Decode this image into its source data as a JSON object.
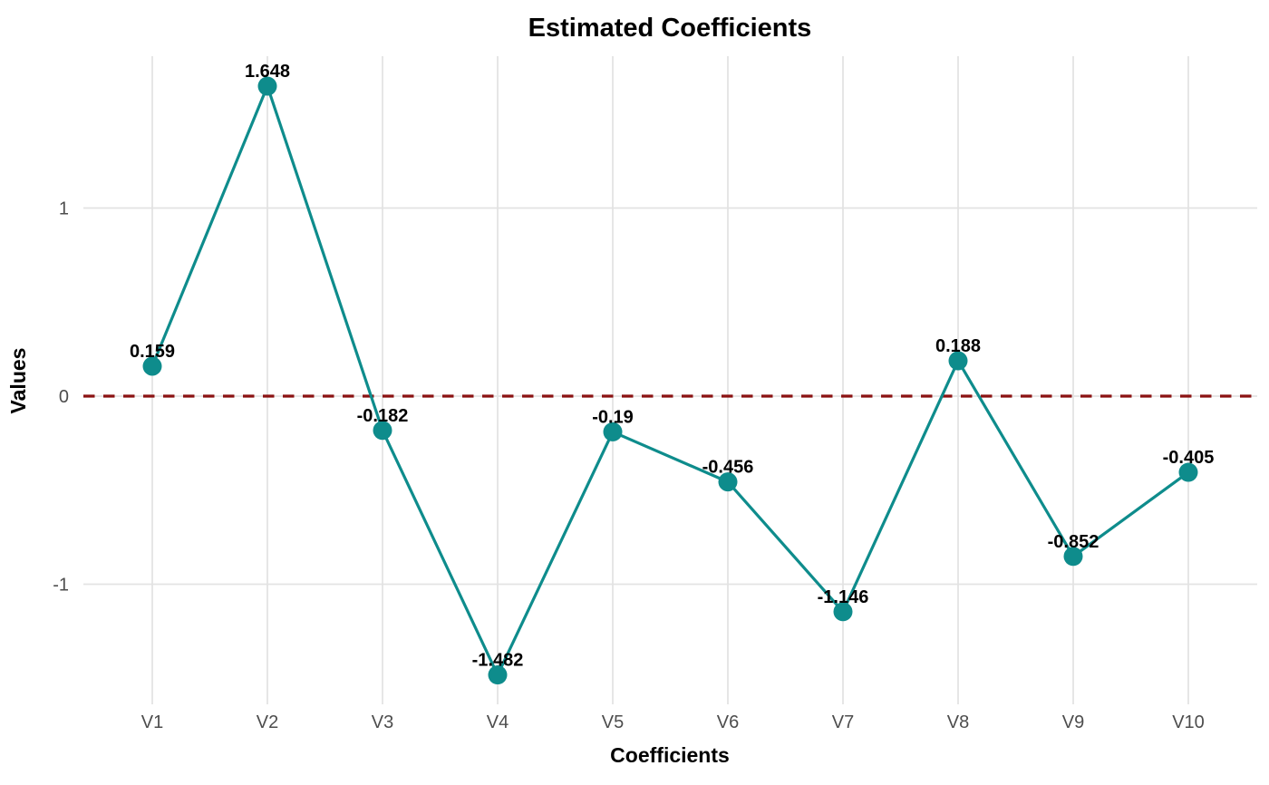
{
  "chart_data": {
    "type": "line",
    "title": "Estimated Coefficients",
    "xlabel": "Coefficients",
    "ylabel": "Values",
    "categories": [
      "V1",
      "V2",
      "V3",
      "V4",
      "V5",
      "V6",
      "V7",
      "V8",
      "V9",
      "V10"
    ],
    "values": [
      0.159,
      1.648,
      -0.182,
      -1.482,
      -0.19,
      -0.456,
      -1.146,
      0.188,
      -0.852,
      -0.405
    ],
    "point_labels": [
      "0.159",
      "1.648",
      "-0.182",
      "-1.482",
      "-0.19",
      "-0.456",
      "-1.146",
      "0.188",
      "-0.852",
      "-0.405"
    ],
    "y_ticks": [
      1,
      0,
      -1
    ],
    "y_tick_labels": [
      "1",
      "0",
      "-1"
    ],
    "ylim": [
      -1.64,
      1.8
    ],
    "grid": true,
    "legend": "none",
    "reference_line": {
      "y": 0,
      "style": "dashed"
    },
    "colors": {
      "series": "#0E8C8C",
      "reference": "#8B1212",
      "grid": "#E3E3E3",
      "tick_text": "#4D4D4D",
      "title_text": "#000000",
      "background": "#FFFFFF"
    }
  }
}
